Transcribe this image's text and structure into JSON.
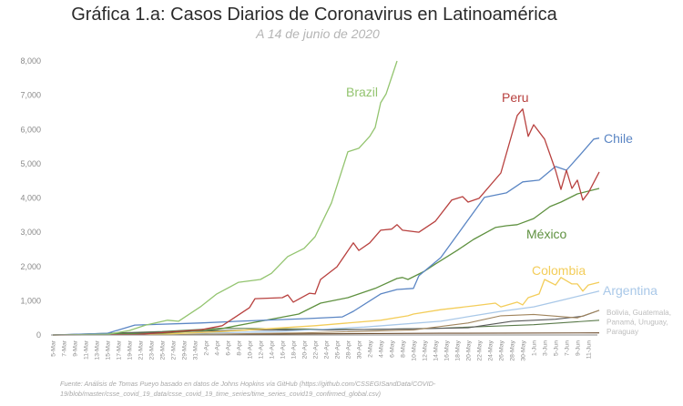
{
  "chart_data": {
    "type": "line",
    "title": "Gráfica 1.a: Casos Diarios de Coronavirus en Latinoamérica",
    "subtitle": "A 14 de junio de 2020",
    "xlabel": "",
    "ylabel": "",
    "ylim": [
      0,
      8000
    ],
    "xlim": [
      "2020-03-05",
      "2020-06-13"
    ],
    "grid": false,
    "legend": "direct labels at line ends",
    "y_ticks": [
      "0",
      "1,000",
      "2,000",
      "3,000",
      "4,000",
      "5,000",
      "6,000",
      "7,000",
      "8,000"
    ],
    "y_tick_values": [
      0,
      1000,
      2000,
      3000,
      4000,
      5000,
      6000,
      7000,
      8000
    ],
    "x_ticks": [
      "5-Mar",
      "7-Mar",
      "9-Mar",
      "11-Mar",
      "13-Mar",
      "15-Mar",
      "17-Mar",
      "19-Mar",
      "21-Mar",
      "23-Mar",
      "25-Mar",
      "27-Mar",
      "29-Mar",
      "31-Mar",
      "2-Apr",
      "4-Apr",
      "6-Apr",
      "8-Apr",
      "10-Apr",
      "12-Apr",
      "14-Apr",
      "16-Apr",
      "18-Apr",
      "20-Apr",
      "22-Apr",
      "24-Apr",
      "26-Apr",
      "28-Apr",
      "30-Apr",
      "2-May",
      "4-May",
      "6-May",
      "8-May",
      "10-May",
      "12-May",
      "14-May",
      "16-May",
      "18-May",
      "20-May",
      "22-May",
      "24-May",
      "26-May",
      "28-May",
      "30-May",
      "1-Jun",
      "3-Jun",
      "5-Jun",
      "7-Jun",
      "9-Jun",
      "11-Jun"
    ],
    "series": [
      {
        "name": "Brazil",
        "color": "#93c46f",
        "points": [
          [
            "2020-03-05",
            0
          ],
          [
            "2020-03-15",
            20
          ],
          [
            "2020-03-19",
            130
          ],
          [
            "2020-03-22",
            290
          ],
          [
            "2020-03-26",
            430
          ],
          [
            "2020-03-28",
            400
          ],
          [
            "2020-04-01",
            820
          ],
          [
            "2020-04-04",
            1200
          ],
          [
            "2020-04-08",
            1540
          ],
          [
            "2020-04-12",
            1620
          ],
          [
            "2020-04-14",
            1800
          ],
          [
            "2020-04-17",
            2290
          ],
          [
            "2020-04-20",
            2530
          ],
          [
            "2020-04-22",
            2870
          ],
          [
            "2020-04-25",
            3860
          ],
          [
            "2020-04-28",
            5350
          ],
          [
            "2020-04-30",
            5450
          ],
          [
            "2020-05-02",
            5800
          ],
          [
            "2020-05-03",
            6060
          ],
          [
            "2020-05-04",
            6780
          ],
          [
            "2020-05-05",
            7040
          ],
          [
            "2020-05-07",
            8000
          ]
        ]
      },
      {
        "name": "Peru",
        "color": "#b8413f",
        "points": [
          [
            "2020-03-05",
            0
          ],
          [
            "2020-03-20",
            10
          ],
          [
            "2020-04-01",
            150
          ],
          [
            "2020-04-05",
            270
          ],
          [
            "2020-04-10",
            800
          ],
          [
            "2020-04-11",
            1060
          ],
          [
            "2020-04-16",
            1090
          ],
          [
            "2020-04-17",
            1170
          ],
          [
            "2020-04-18",
            960
          ],
          [
            "2020-04-21",
            1220
          ],
          [
            "2020-04-22",
            1200
          ],
          [
            "2020-04-23",
            1620
          ],
          [
            "2020-04-26",
            1990
          ],
          [
            "2020-04-29",
            2690
          ],
          [
            "2020-04-30",
            2470
          ],
          [
            "2020-05-02",
            2690
          ],
          [
            "2020-05-04",
            3060
          ],
          [
            "2020-05-06",
            3090
          ],
          [
            "2020-05-07",
            3220
          ],
          [
            "2020-05-08",
            3060
          ],
          [
            "2020-05-11",
            3000
          ],
          [
            "2020-05-14",
            3320
          ],
          [
            "2020-05-17",
            3940
          ],
          [
            "2020-05-19",
            4040
          ],
          [
            "2020-05-20",
            3880
          ],
          [
            "2020-05-22",
            3990
          ],
          [
            "2020-05-26",
            4730
          ],
          [
            "2020-05-29",
            6410
          ],
          [
            "2020-05-30",
            6600
          ],
          [
            "2020-05-31",
            5800
          ],
          [
            "2020-06-01",
            6140
          ],
          [
            "2020-06-03",
            5720
          ],
          [
            "2020-06-05",
            4810
          ],
          [
            "2020-06-06",
            4250
          ],
          [
            "2020-06-07",
            4810
          ],
          [
            "2020-06-08",
            4280
          ],
          [
            "2020-06-09",
            4520
          ],
          [
            "2020-06-10",
            3940
          ],
          [
            "2020-06-11",
            4150
          ],
          [
            "2020-06-13",
            4760
          ]
        ]
      },
      {
        "name": "Chile",
        "color": "#5b86c4",
        "points": [
          [
            "2020-03-05",
            0
          ],
          [
            "2020-03-15",
            50
          ],
          [
            "2020-03-20",
            290
          ],
          [
            "2020-04-01",
            350
          ],
          [
            "2020-04-08",
            400
          ],
          [
            "2020-04-21",
            480
          ],
          [
            "2020-04-27",
            530
          ],
          [
            "2020-04-29",
            690
          ],
          [
            "2020-05-04",
            1200
          ],
          [
            "2020-05-07",
            1330
          ],
          [
            "2020-05-10",
            1360
          ],
          [
            "2020-05-11",
            1730
          ],
          [
            "2020-05-15",
            2260
          ],
          [
            "2020-05-19",
            3140
          ],
          [
            "2020-05-23",
            4020
          ],
          [
            "2020-05-27",
            4150
          ],
          [
            "2020-05-30",
            4470
          ],
          [
            "2020-06-02",
            4520
          ],
          [
            "2020-06-05",
            4920
          ],
          [
            "2020-06-07",
            4810
          ],
          [
            "2020-06-10",
            5350
          ],
          [
            "2020-06-12",
            5720
          ],
          [
            "2020-06-13",
            5750
          ]
        ]
      },
      {
        "name": "México",
        "color": "#5f9140",
        "points": [
          [
            "2020-03-05",
            0
          ],
          [
            "2020-03-25",
            50
          ],
          [
            "2020-04-04",
            160
          ],
          [
            "2020-04-12",
            400
          ],
          [
            "2020-04-19",
            610
          ],
          [
            "2020-04-23",
            930
          ],
          [
            "2020-04-28",
            1090
          ],
          [
            "2020-05-03",
            1360
          ],
          [
            "2020-05-07",
            1650
          ],
          [
            "2020-05-08",
            1680
          ],
          [
            "2020-05-09",
            1620
          ],
          [
            "2020-05-12",
            1860
          ],
          [
            "2020-05-14",
            2070
          ],
          [
            "2020-05-18",
            2470
          ],
          [
            "2020-05-21",
            2790
          ],
          [
            "2020-05-25",
            3140
          ],
          [
            "2020-05-27",
            3190
          ],
          [
            "2020-05-29",
            3220
          ],
          [
            "2020-06-01",
            3400
          ],
          [
            "2020-06-04",
            3750
          ],
          [
            "2020-06-06",
            3880
          ],
          [
            "2020-06-09",
            4120
          ],
          [
            "2020-06-13",
            4280
          ]
        ]
      },
      {
        "name": "Colombia",
        "color": "#f3cd5a",
        "points": [
          [
            "2020-03-05",
            0
          ],
          [
            "2020-03-25",
            20
          ],
          [
            "2020-04-05",
            100
          ],
          [
            "2020-04-22",
            270
          ],
          [
            "2020-05-04",
            430
          ],
          [
            "2020-05-09",
            560
          ],
          [
            "2020-05-10",
            610
          ],
          [
            "2020-05-15",
            740
          ],
          [
            "2020-05-21",
            850
          ],
          [
            "2020-05-25",
            930
          ],
          [
            "2020-05-26",
            820
          ],
          [
            "2020-05-29",
            960
          ],
          [
            "2020-05-30",
            880
          ],
          [
            "2020-05-31",
            1090
          ],
          [
            "2020-06-02",
            1200
          ],
          [
            "2020-06-03",
            1620
          ],
          [
            "2020-06-05",
            1460
          ],
          [
            "2020-06-06",
            1680
          ],
          [
            "2020-06-08",
            1490
          ],
          [
            "2020-06-09",
            1490
          ],
          [
            "2020-06-10",
            1280
          ],
          [
            "2020-06-11",
            1460
          ],
          [
            "2020-06-13",
            1540
          ]
        ]
      },
      {
        "name": "Argentina",
        "color": "#a9c8e8",
        "points": [
          [
            "2020-03-05",
            0
          ],
          [
            "2020-03-25",
            30
          ],
          [
            "2020-04-15",
            100
          ],
          [
            "2020-05-01",
            230
          ],
          [
            "2020-05-15",
            400
          ],
          [
            "2020-05-21",
            560
          ],
          [
            "2020-05-26",
            690
          ],
          [
            "2020-06-01",
            820
          ],
          [
            "2020-06-06",
            1010
          ],
          [
            "2020-06-13",
            1280
          ]
        ]
      },
      {
        "name": "",
        "color": "#a0845c",
        "points": [
          [
            "2020-03-05",
            0
          ],
          [
            "2020-04-01",
            20
          ],
          [
            "2020-04-20",
            60
          ],
          [
            "2020-05-10",
            150
          ],
          [
            "2020-05-20",
            350
          ],
          [
            "2020-05-26",
            560
          ],
          [
            "2020-06-01",
            600
          ],
          [
            "2020-06-05",
            550
          ],
          [
            "2020-06-09",
            500
          ],
          [
            "2020-06-13",
            720
          ]
        ]
      },
      {
        "name": "",
        "color": "#5a5a5a",
        "points": [
          [
            "2020-03-05",
            0
          ],
          [
            "2020-04-10",
            150
          ],
          [
            "2020-04-25",
            150
          ],
          [
            "2020-05-10",
            180
          ],
          [
            "2020-05-20",
            210
          ],
          [
            "2020-05-28",
            400
          ],
          [
            "2020-06-05",
            460
          ],
          [
            "2020-06-10",
            550
          ],
          [
            "2020-06-13",
            720
          ]
        ]
      },
      {
        "name": "",
        "color": "#5a7a4a",
        "points": [
          [
            "2020-03-05",
            0
          ],
          [
            "2020-03-25",
            100
          ],
          [
            "2020-04-05",
            200
          ],
          [
            "2020-04-15",
            180
          ],
          [
            "2020-05-01",
            160
          ],
          [
            "2020-05-15",
            200
          ],
          [
            "2020-06-01",
            300
          ],
          [
            "2020-06-13",
            430
          ]
        ]
      },
      {
        "name": "",
        "color": "#6b4a2a",
        "points": [
          [
            "2020-03-05",
            0
          ],
          [
            "2020-04-15",
            30
          ],
          [
            "2020-05-15",
            50
          ],
          [
            "2020-06-13",
            60
          ]
        ]
      }
    ],
    "group_label": [
      "Bolivia, Guatemala,",
      "Panamá, Uruguay,",
      "Paraguay"
    ],
    "group_label_color": "#bdbdbd"
  },
  "source": {
    "line1": "Fuente: Análisis de Tomas Pueyo basado en datos de Johns Hopkins vía GitHub (https://github.com/CSSEGISandData/COVID-",
    "line2": "19/blob/master/csse_covid_19_data/csse_covid_19_time_series/time_series_covid19_confirmed_global.csv)"
  }
}
